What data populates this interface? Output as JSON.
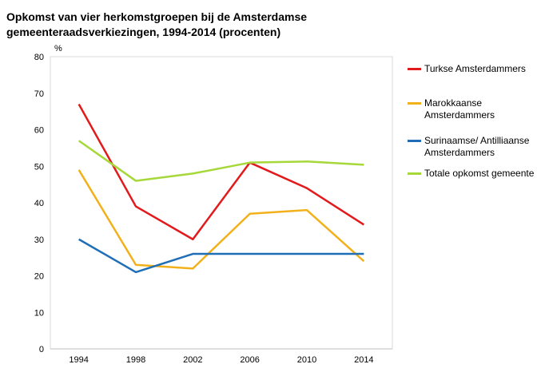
{
  "chart_data": {
    "type": "line",
    "title": "Opkomst van vier herkomstgroepen bij de Amsterdamse gemeenteraadsverkiezingen, 1994-2014 (procenten)",
    "ylabel": "%",
    "xlabel": "",
    "categories": [
      "1994",
      "1998",
      "2002",
      "2006",
      "2010",
      "2014"
    ],
    "ylim": [
      0,
      80
    ],
    "yticks": [
      0,
      10,
      20,
      30,
      40,
      50,
      60,
      70,
      80
    ],
    "grid": false,
    "legend_position": "right",
    "series": [
      {
        "name": "Turkse Amsterdammers",
        "color": "#e31a1c",
        "values": [
          67,
          39,
          30,
          51,
          44,
          34
        ]
      },
      {
        "name": "Marokkaanse Amsterdammers",
        "color": "#f2b11b",
        "values": [
          49,
          23,
          22,
          37,
          38,
          24
        ]
      },
      {
        "name": "Surinaamse/ Antilliaanse Amsterdammers",
        "color": "#1f6eb7",
        "values": [
          30,
          21,
          26,
          26,
          26,
          26
        ]
      },
      {
        "name": "Totale opkomst gemeente",
        "color": "#a6d839",
        "values": [
          57,
          46,
          48,
          51,
          51.3,
          50.4
        ]
      }
    ]
  },
  "legend_labels": [
    [
      "Turkse Amsterdammers"
    ],
    [
      "Marokkaanse",
      "Amsterdammers"
    ],
    [
      "Surinaamse/ Antilliaanse",
      "Amsterdammers"
    ],
    [
      "Totale opkomst gemeente"
    ]
  ]
}
